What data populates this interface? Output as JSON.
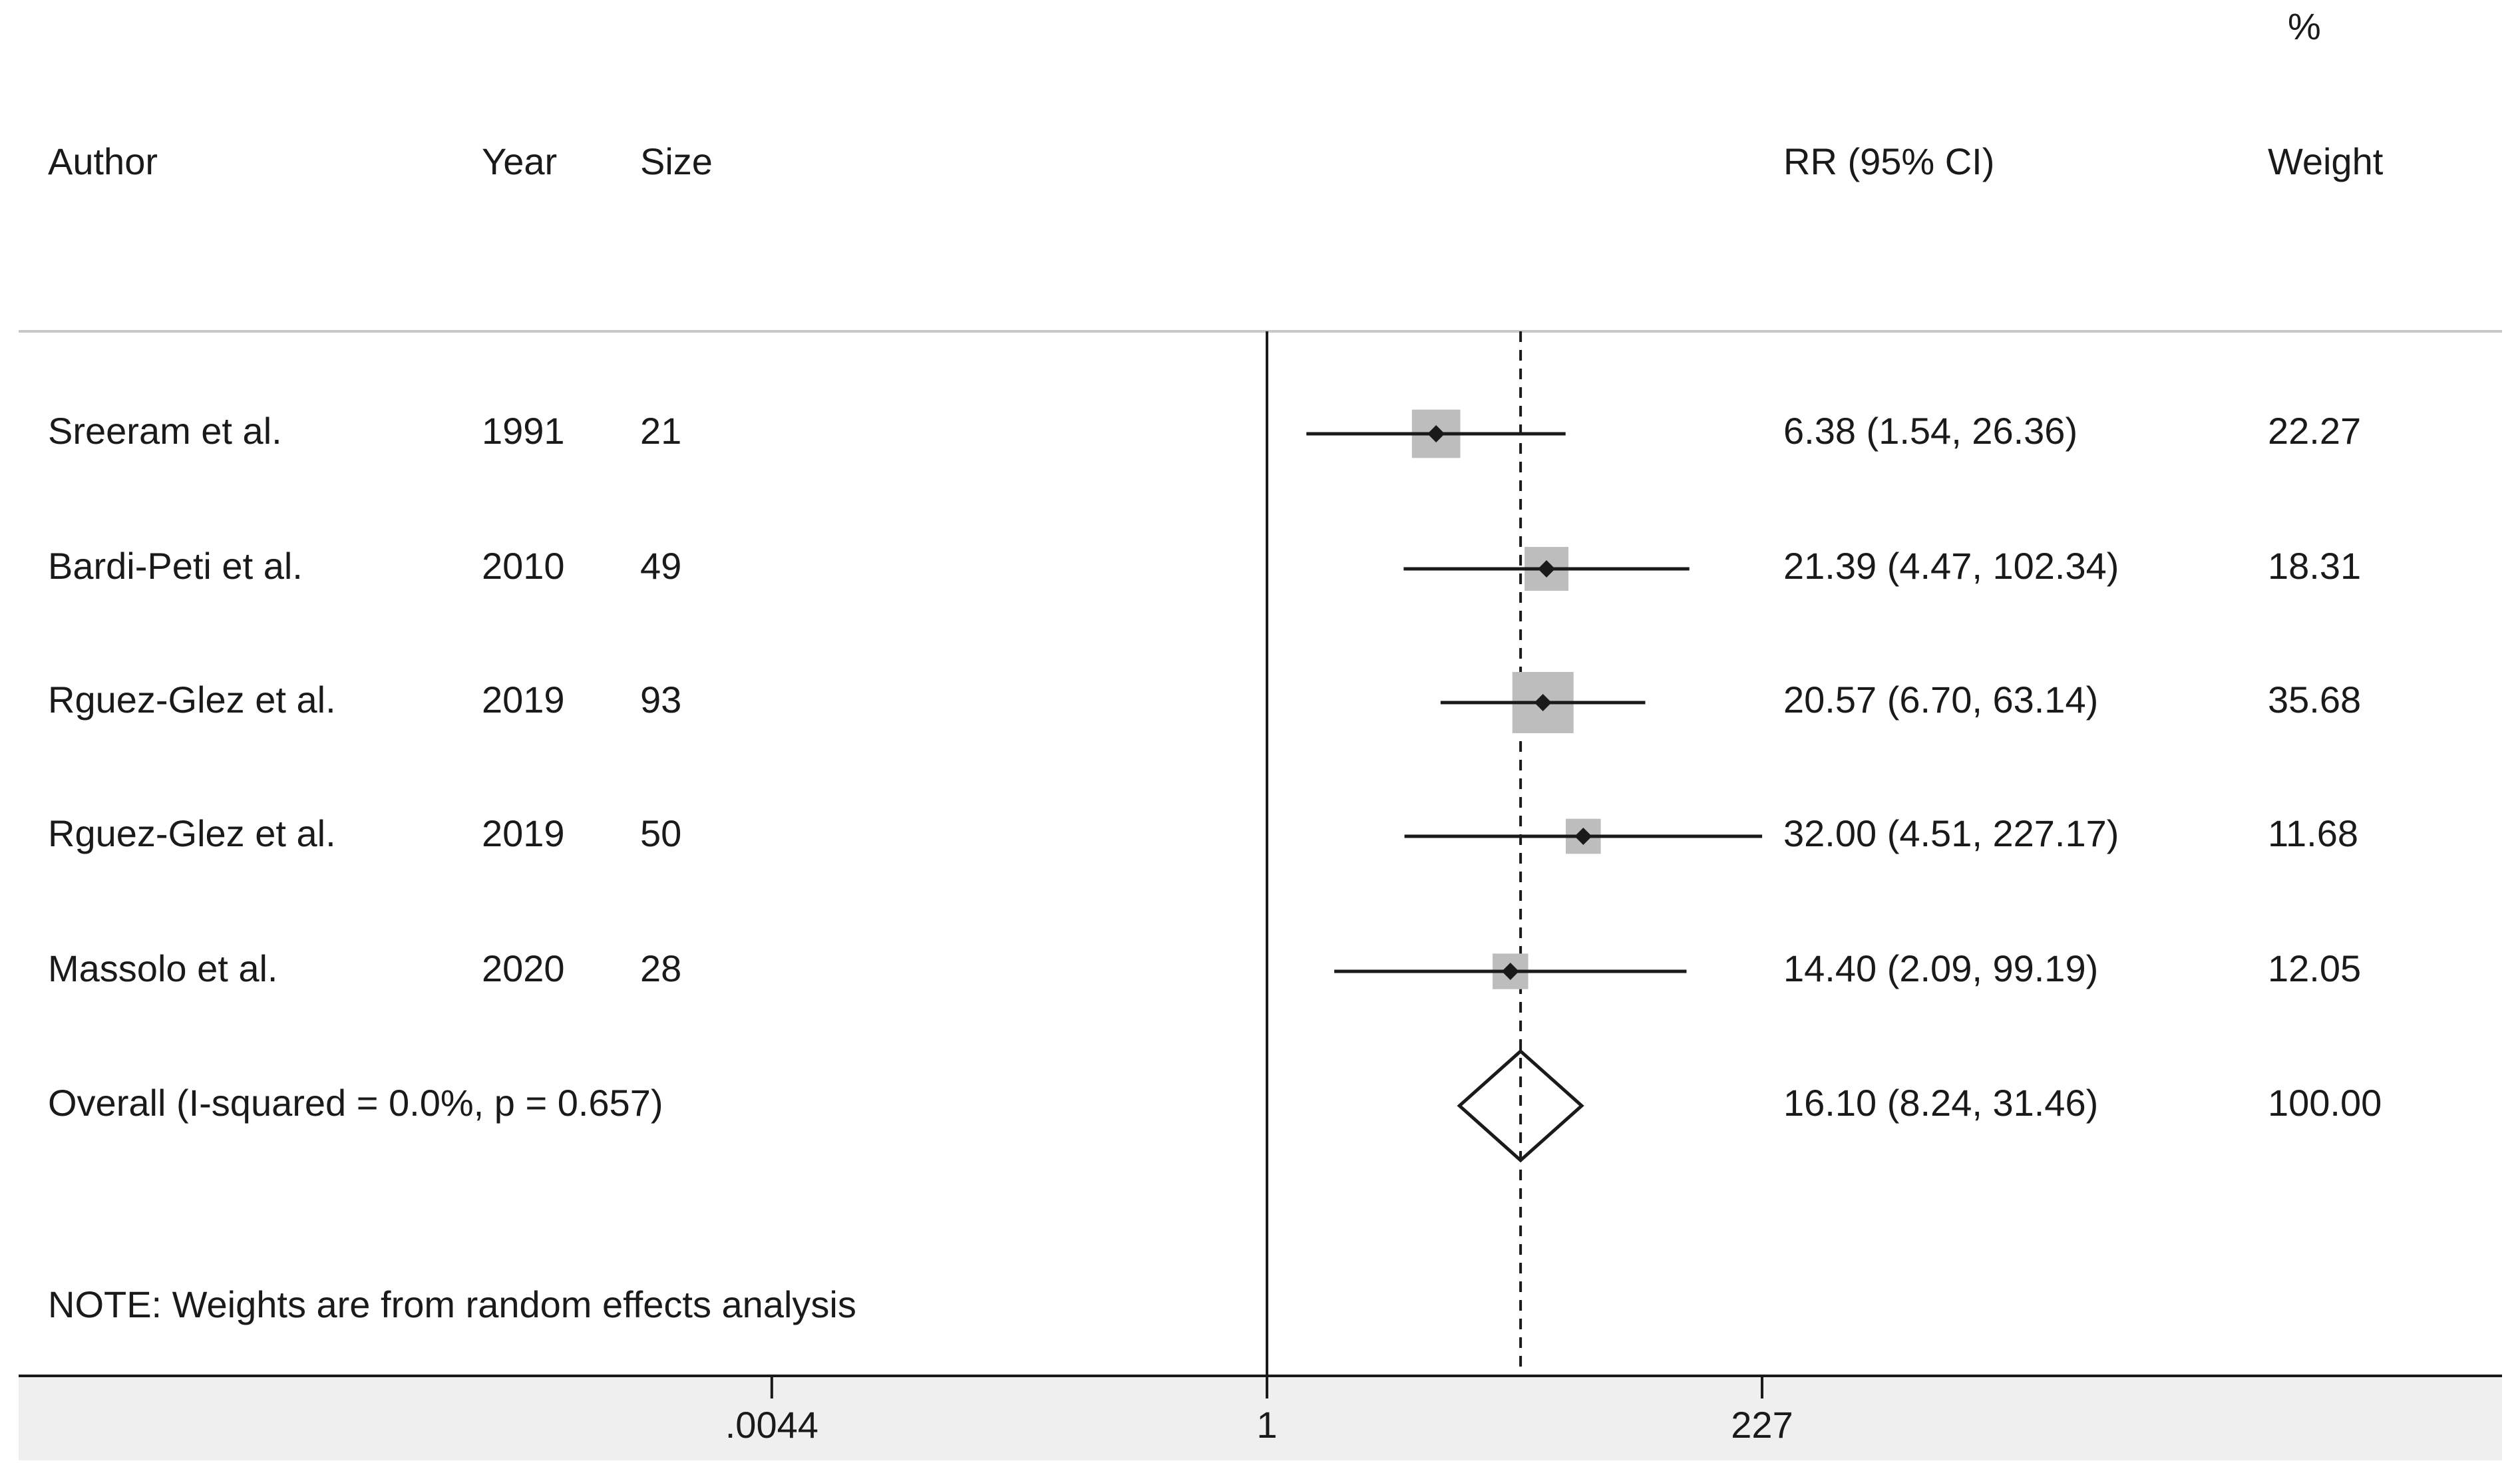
{
  "chart_data": {
    "type": "forest",
    "scale": "log",
    "headers": {
      "author": "Author",
      "year": "Year",
      "size": "Size",
      "effect": "RR (95% CI)",
      "weight_top": "%",
      "weight": "Weight"
    },
    "studies": [
      {
        "author": "Sreeram et al.",
        "year": "1991",
        "size": "21",
        "rr": 6.38,
        "lo": 1.54,
        "hi": 26.36,
        "ci_text": "6.38 (1.54, 26.36)",
        "weight": 22.27,
        "weight_text": "22.27"
      },
      {
        "author": "Bardi-Peti et al.",
        "year": "2010",
        "size": "49",
        "rr": 21.39,
        "lo": 4.47,
        "hi": 102.34,
        "ci_text": "21.39 (4.47, 102.34)",
        "weight": 18.31,
        "weight_text": "18.31"
      },
      {
        "author": "Rguez-Glez et al.",
        "year": "2019",
        "size": "93",
        "rr": 20.57,
        "lo": 6.7,
        "hi": 63.14,
        "ci_text": "20.57 (6.70, 63.14)",
        "weight": 35.68,
        "weight_text": "35.68"
      },
      {
        "author": "Rguez-Glez et al.",
        "year": "2019",
        "size": "50",
        "rr": 32.0,
        "lo": 4.51,
        "hi": 227.17,
        "ci_text": "32.00 (4.51, 227.17)",
        "weight": 11.68,
        "weight_text": "11.68"
      },
      {
        "author": "Massolo et al.",
        "year": "2020",
        "size": "28",
        "rr": 14.4,
        "lo": 2.09,
        "hi": 99.19,
        "ci_text": "14.40 (2.09, 99.19)",
        "weight": 12.05,
        "weight_text": "12.05"
      }
    ],
    "overall": {
      "label": "Overall  (I-squared = 0.0%, p = 0.657)",
      "rr": 16.1,
      "lo": 8.24,
      "hi": 31.46,
      "ci_text": "16.10 (8.24, 31.46)",
      "weight_text": "100.00"
    },
    "note": "NOTE: Weights are from random effects analysis",
    "x_ticks": [
      {
        "value": 0.0044,
        "label": ".0044"
      },
      {
        "value": 1,
        "label": "1"
      },
      {
        "value": 227,
        "label": "227"
      }
    ],
    "null_value": 1,
    "xlim": [
      0.0044,
      227
    ]
  },
  "colors": {
    "text": "#1a1a1a",
    "line": "#1a1a1a",
    "box": "#bdbdbd",
    "rule": "#c8c8c8",
    "axis_band": "#efefef"
  }
}
